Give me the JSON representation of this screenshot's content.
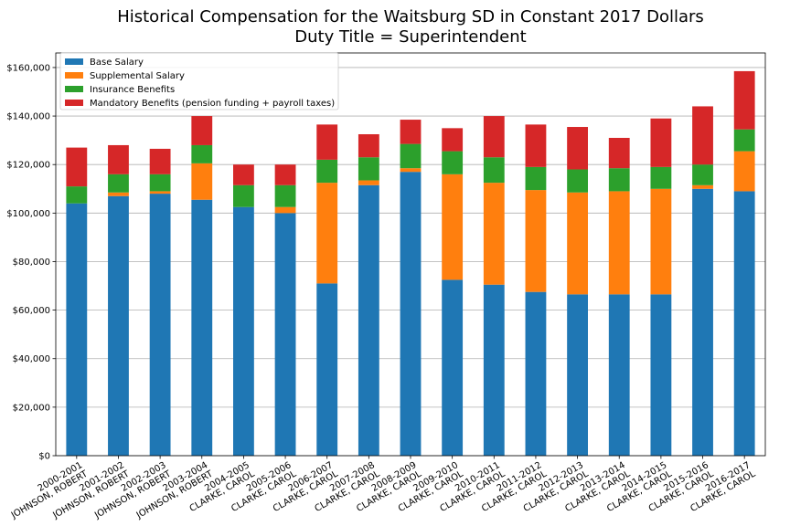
{
  "chart_data": {
    "type": "bar",
    "stacked": true,
    "title": "Historical Compensation for the Waitsburg SD in Constant 2017 Dollars",
    "subtitle": "Duty Title = Superintendent",
    "xlabel": "",
    "ylabel": "",
    "ylim": [
      0,
      166000
    ],
    "yticks": [
      "$0",
      "$20,000",
      "$40,000",
      "$60,000",
      "$80,000",
      "$100,000",
      "$120,000",
      "$140,000",
      "$160,000"
    ],
    "ytick_values": [
      0,
      20000,
      40000,
      60000,
      80000,
      100000,
      120000,
      140000,
      160000
    ],
    "grid": "horizontal",
    "legend_position": "top-left",
    "categories": [
      [
        "2000-2001",
        "JOHNSON, ROBERT"
      ],
      [
        "2001-2002",
        "JOHNSON, ROBERT"
      ],
      [
        "2002-2003",
        "JOHNSON, ROBERT"
      ],
      [
        "2003-2004",
        "JOHNSON, ROBERT"
      ],
      [
        "2004-2005",
        "CLARKE, CAROL"
      ],
      [
        "2005-2006",
        "CLARKE, CAROL"
      ],
      [
        "2006-2007",
        "CLARKE, CAROL"
      ],
      [
        "2007-2008",
        "CLARKE, CAROL"
      ],
      [
        "2008-2009",
        "CLARKE, CAROL"
      ],
      [
        "2009-2010",
        "CLARKE, CAROL"
      ],
      [
        "2010-2011",
        "CLARKE, CAROL"
      ],
      [
        "2011-2012",
        "CLARKE, CAROL"
      ],
      [
        "2012-2013",
        "CLARKE, CAROL"
      ],
      [
        "2013-2014",
        "CLARKE, CAROL"
      ],
      [
        "2014-2015",
        "CLARKE, CAROL"
      ],
      [
        "2015-2016",
        "CLARKE, CAROL"
      ],
      [
        "2016-2017",
        "CLARKE, CAROL"
      ]
    ],
    "series": [
      {
        "name": "Base Salary",
        "color": "#1f77b4",
        "values": [
          104000,
          107000,
          108000,
          105500,
          102500,
          100000,
          71000,
          111500,
          117000,
          72500,
          70500,
          67500,
          66500,
          66500,
          66500,
          110000,
          109000
        ]
      },
      {
        "name": "Supplemental Salary",
        "color": "#ff7f0e",
        "values": [
          0,
          1500,
          1000,
          15000,
          0,
          2500,
          41500,
          2000,
          1500,
          43500,
          42000,
          42000,
          42000,
          42500,
          43500,
          1500,
          16500
        ]
      },
      {
        "name": "Insurance Benefits",
        "color": "#2ca02c",
        "values": [
          7000,
          7500,
          7000,
          7500,
          9000,
          9000,
          9500,
          9500,
          10000,
          9500,
          10500,
          9500,
          9500,
          9500,
          9000,
          8500,
          9000
        ]
      },
      {
        "name": "Mandatory Benefits (pension funding + payroll taxes)",
        "color": "#d62728",
        "values": [
          16000,
          12000,
          10500,
          12000,
          8500,
          8500,
          14500,
          9500,
          10000,
          9500,
          17000,
          17500,
          17500,
          12500,
          20000,
          24000,
          24000
        ]
      }
    ]
  }
}
